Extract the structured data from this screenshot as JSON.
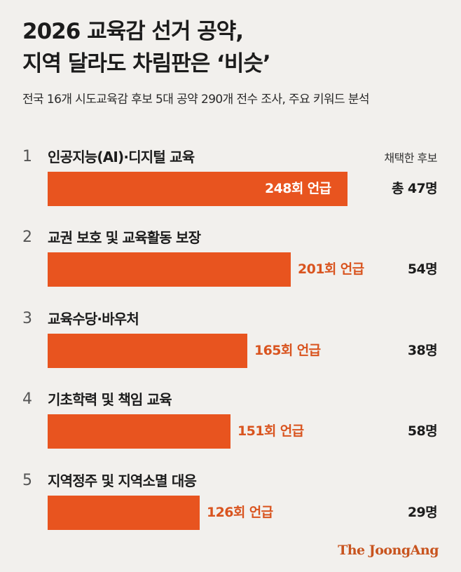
{
  "title_line1": "2026 교육감 선거 공약,",
  "title_line2": "지역 달라도 차림판은 ‘비슷’",
  "subtitle": "전국 16개 시도교육감 후보 5대 공약 290개 전수 조사, 주요 키워드 분석",
  "right_column_header": "채택한 후보",
  "credit": "The JoongAng",
  "colors": {
    "bar": "#e8541f",
    "bar_text_inside": "#ffffff",
    "bar_text_outside": "#d9541f",
    "background": "#f2f0ed"
  },
  "chart_data": {
    "type": "bar",
    "orientation": "horizontal",
    "categories": [
      "인공지능(AI)·디지털 교육",
      "교권 보호 및 교육활동 보장",
      "교육수당·바우처",
      "기초학력 및 책임 교육",
      "지역정주 및 지역소멸 대응"
    ],
    "ranks": [
      "1",
      "2",
      "3",
      "4",
      "5"
    ],
    "values": [
      248,
      201,
      165,
      151,
      126
    ],
    "value_labels": [
      "248회 언급",
      "201회 언급",
      "165회 언급",
      "151회 언급",
      "126회 언급"
    ],
    "candidates": [
      "총 47명",
      "54명",
      "38명",
      "58명",
      "29명"
    ],
    "grid": false,
    "legend": "none"
  }
}
